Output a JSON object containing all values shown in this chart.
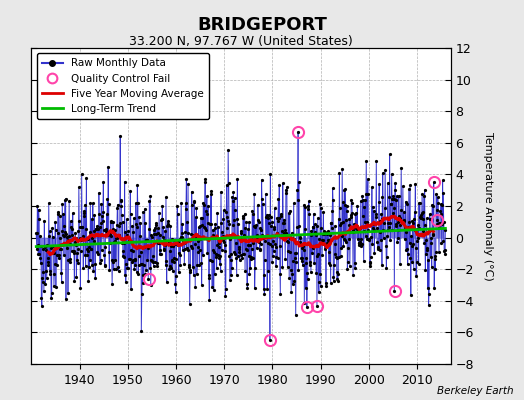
{
  "title": "BRIDGEPORT",
  "subtitle": "33.200 N, 97.767 W (United States)",
  "ylabel": "Temperature Anomaly (°C)",
  "credit": "Berkeley Earth",
  "bg_color": "#e8e8e8",
  "plot_bg_color": "#ffffff",
  "xlim": [
    1930,
    2017
  ],
  "ylim": [
    -8,
    12
  ],
  "yticks": [
    -8,
    -6,
    -4,
    -2,
    0,
    2,
    4,
    6,
    8,
    10,
    12
  ],
  "xticks": [
    1940,
    1950,
    1960,
    1970,
    1980,
    1990,
    2000,
    2010
  ],
  "start_year": 1931,
  "end_year": 2015,
  "seed": 42,
  "noise_scale": 2.2,
  "long_term_slope": 0.01,
  "long_term_intercept": -0.1,
  "five_year_window": 60,
  "raw_line_color": "#3333cc",
  "raw_marker_color": "#000000",
  "ma_color": "#dd0000",
  "trend_color": "#00bb00",
  "qc_color": "#ff44aa",
  "legend_loc": "upper left",
  "qc_points": [
    [
      1954.3,
      -2.6
    ],
    [
      1979.5,
      -6.5
    ],
    [
      1985.4,
      6.7
    ],
    [
      1987.2,
      -4.4
    ],
    [
      1989.3,
      -4.3
    ],
    [
      2005.4,
      -3.4
    ],
    [
      2013.5,
      3.5
    ],
    [
      2014.2,
      1.1
    ]
  ]
}
